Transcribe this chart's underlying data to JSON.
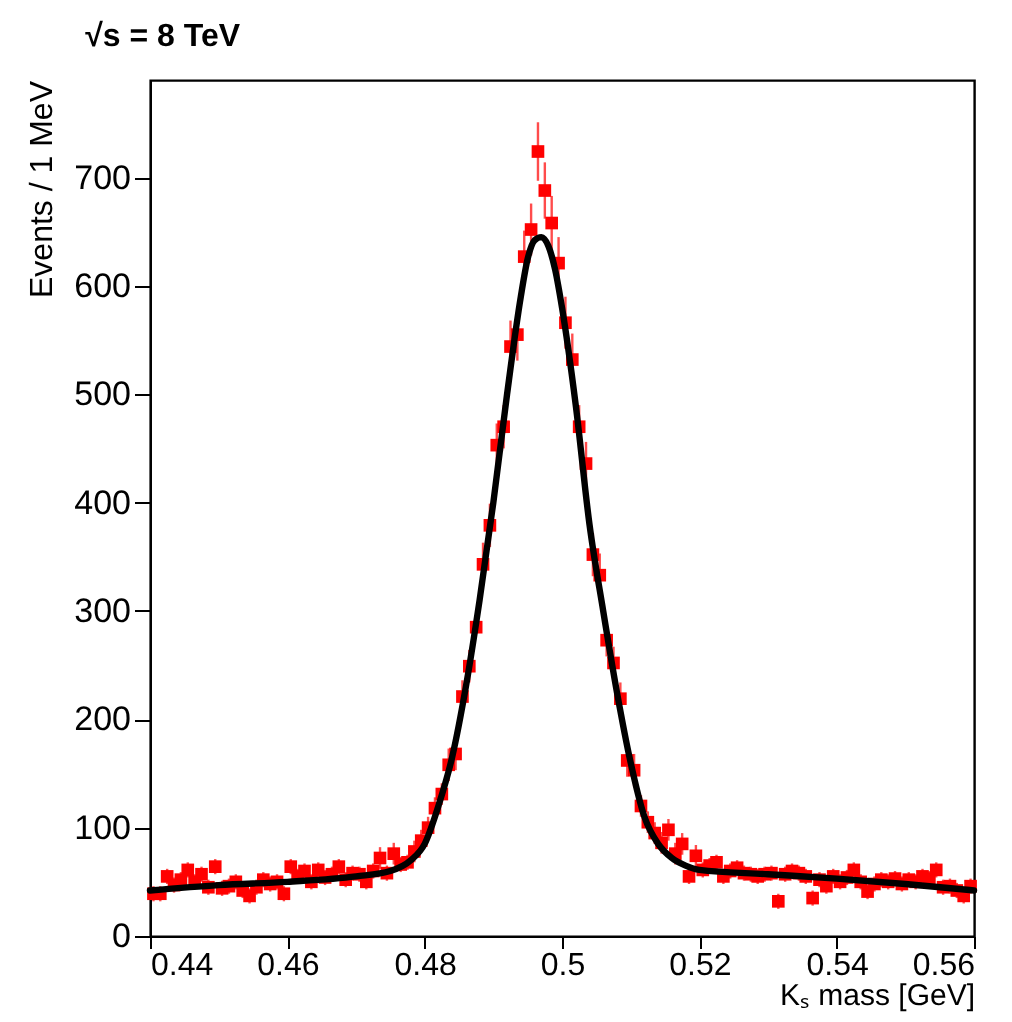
{
  "chart_data": {
    "type": "scatter",
    "title": "√s = 8 TeV",
    "xlabel": "Kₛ mass [GeV]",
    "ylabel": "Events / 1 MeV",
    "xlim": [
      0.44,
      0.56
    ],
    "xticks": [
      0.44,
      0.46,
      0.48,
      0.5,
      0.52,
      0.54,
      0.56
    ],
    "ylim": [
      0,
      790
    ],
    "yticks": [
      0,
      100,
      200,
      300,
      400,
      500,
      600,
      700
    ],
    "grid": false,
    "series": [
      {
        "color": "#ff0000",
        "marker": "square",
        "x": [
          0.4405,
          0.4415,
          0.4425,
          0.4435,
          0.4445,
          0.4455,
          0.4465,
          0.4475,
          0.4485,
          0.4495,
          0.4505,
          0.4515,
          0.4525,
          0.4535,
          0.4545,
          0.4555,
          0.4565,
          0.4575,
          0.4585,
          0.4595,
          0.4605,
          0.4615,
          0.4625,
          0.4635,
          0.4645,
          0.4655,
          0.4665,
          0.4675,
          0.4685,
          0.4695,
          0.4705,
          0.4715,
          0.4725,
          0.4735,
          0.4745,
          0.4755,
          0.4765,
          0.4775,
          0.4785,
          0.4795,
          0.4805,
          0.4815,
          0.4825,
          0.4835,
          0.4845,
          0.4855,
          0.4865,
          0.4875,
          0.4885,
          0.4895,
          0.4905,
          0.4915,
          0.4925,
          0.4935,
          0.4945,
          0.4955,
          0.4965,
          0.4975,
          0.4985,
          0.4995,
          0.5005,
          0.5015,
          0.5025,
          0.5035,
          0.5045,
          0.5055,
          0.5065,
          0.5075,
          0.5085,
          0.5095,
          0.5105,
          0.5115,
          0.5125,
          0.5135,
          0.5145,
          0.5155,
          0.5165,
          0.5175,
          0.5185,
          0.5195,
          0.5205,
          0.5215,
          0.5225,
          0.5235,
          0.5245,
          0.5255,
          0.5265,
          0.5275,
          0.5285,
          0.5295,
          0.5305,
          0.5315,
          0.5325,
          0.5335,
          0.5345,
          0.5355,
          0.5365,
          0.5375,
          0.5385,
          0.5395,
          0.5405,
          0.5415,
          0.5425,
          0.5435,
          0.5445,
          0.5455,
          0.5465,
          0.5475,
          0.5485,
          0.5495,
          0.5505,
          0.5515,
          0.5525,
          0.5535,
          0.5545,
          0.5555,
          0.5565,
          0.5575,
          0.5585,
          0.5595
        ],
        "values": [
          39,
          39,
          55,
          47,
          52,
          61,
          50,
          57,
          45,
          64,
          44,
          46,
          50,
          42,
          37,
          45,
          52,
          48,
          50,
          39,
          64,
          55,
          60,
          50,
          61,
          54,
          57,
          64,
          52,
          58,
          57,
          50,
          60,
          72,
          58,
          76,
          66,
          68,
          78,
          88,
          100,
          118,
          131,
          158,
          168,
          221,
          249,
          285,
          343,
          379,
          453,
          470,
          544,
          555,
          627,
          652,
          724,
          688,
          658,
          621,
          566,
          532,
          470,
          436,
          352,
          333,
          273,
          252,
          219,
          162,
          153,
          120,
          105,
          95,
          86,
          98,
          76,
          85,
          55,
          74,
          61,
          65,
          68,
          55,
          60,
          63,
          58,
          57,
          55,
          57,
          58,
          32,
          57,
          60,
          58,
          55,
          35,
          52,
          46,
          55,
          50,
          54,
          61,
          50,
          41,
          48,
          52,
          50,
          53,
          48,
          52,
          50,
          55,
          53,
          61,
          45,
          46,
          42,
          37,
          46
        ],
        "errors": [
          7,
          7,
          7,
          7,
          7,
          7,
          7,
          7,
          7,
          7,
          7,
          7,
          7,
          7,
          7,
          7,
          7,
          7,
          7,
          7,
          7,
          7,
          7,
          7,
          7,
          7,
          7,
          7,
          7,
          7,
          7,
          7,
          7,
          10,
          7,
          10,
          7,
          7,
          10,
          10,
          10,
          10,
          10,
          15,
          15,
          15,
          15,
          null,
          20,
          20,
          20,
          20,
          24,
          24,
          24,
          24,
          27,
          26,
          25,
          24,
          24,
          24,
          20,
          20,
          20,
          20,
          15,
          15,
          15,
          15,
          15,
          10,
          10,
          10,
          10,
          10,
          10,
          10,
          7,
          10,
          7,
          7,
          7,
          7,
          7,
          7,
          7,
          7,
          7,
          7,
          7,
          7,
          7,
          7,
          7,
          7,
          7,
          7,
          7,
          7,
          7,
          7,
          7,
          7,
          7,
          7,
          7,
          7,
          7,
          7,
          7,
          7,
          7,
          7,
          7,
          7,
          7,
          7,
          7,
          7
        ]
      },
      {
        "type": "line",
        "color": "#000000",
        "line_style": "solid",
        "marker": "none",
        "x": [
          0.44,
          0.45,
          0.46,
          0.47,
          0.475,
          0.478,
          0.48,
          0.482,
          0.484,
          0.486,
          0.488,
          0.49,
          0.492,
          0.494,
          0.495,
          0.496,
          0.497,
          0.498,
          0.499,
          0.5,
          0.502,
          0.504,
          0.506,
          0.508,
          0.51,
          0.512,
          0.514,
          0.516,
          0.518,
          0.52,
          0.53,
          0.54,
          0.55,
          0.56
        ],
        "values": [
          42,
          47,
          50,
          55,
          60,
          70,
          85,
          120,
          165,
          230,
          310,
          400,
          500,
          590,
          625,
          642,
          645,
          637,
          615,
          580,
          490,
          380,
          300,
          225,
          160,
          110,
          85,
          72,
          65,
          61,
          57,
          53,
          48,
          42
        ]
      }
    ]
  }
}
